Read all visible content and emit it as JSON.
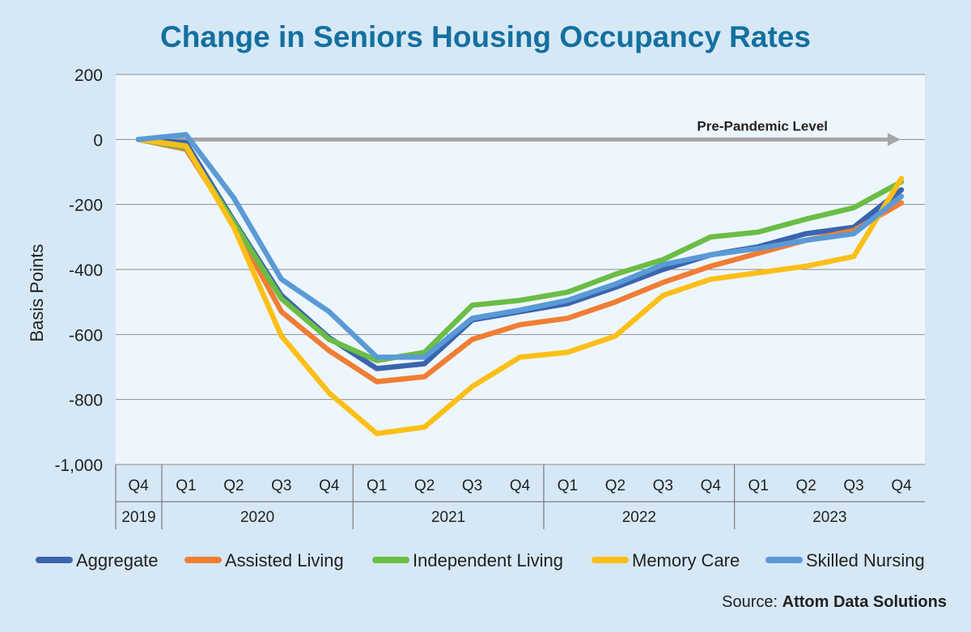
{
  "chart_data": {
    "type": "line",
    "title": "Change in Seniors Housing Occupancy Rates",
    "ylabel": "Basis Points",
    "ylim": [
      -1000,
      200
    ],
    "yticks": [
      200,
      0,
      -200,
      -400,
      -600,
      -800,
      -1000
    ],
    "ytick_labels": [
      "200",
      "0",
      "-200",
      "-400",
      "-600",
      "-800",
      "-1,000"
    ],
    "grid": true,
    "categories": [
      "Q4",
      "Q1",
      "Q2",
      "Q3",
      "Q4",
      "Q1",
      "Q2",
      "Q3",
      "Q4",
      "Q1",
      "Q2",
      "Q3",
      "Q4",
      "Q1",
      "Q2",
      "Q3",
      "Q4"
    ],
    "year_groups": [
      {
        "label": "2019",
        "start": 0,
        "end": 0
      },
      {
        "label": "2020",
        "start": 1,
        "end": 4
      },
      {
        "label": "2021",
        "start": 5,
        "end": 8
      },
      {
        "label": "2022",
        "start": 9,
        "end": 12
      },
      {
        "label": "2023",
        "start": 13,
        "end": 16
      }
    ],
    "reference_line": {
      "y": 0,
      "label": "Pre-Pandemic Level"
    },
    "legend_position": "bottom",
    "series": [
      {
        "name": "Aggregate",
        "color": "#3a64ad",
        "values": [
          0,
          -10,
          -250,
          -480,
          -610,
          -705,
          -690,
          -555,
          -530,
          -505,
          -455,
          -400,
          -355,
          -330,
          -290,
          -270,
          -155
        ]
      },
      {
        "name": "Assisted Living",
        "color": "#f07d34",
        "values": [
          0,
          -30,
          -260,
          -530,
          -650,
          -745,
          -730,
          -615,
          -570,
          -550,
          -500,
          -440,
          -390,
          -350,
          -310,
          -280,
          -195
        ]
      },
      {
        "name": "Independent Living",
        "color": "#6abd45",
        "values": [
          0,
          -25,
          -255,
          -490,
          -615,
          -680,
          -655,
          -510,
          -495,
          -470,
          -415,
          -370,
          -300,
          -285,
          -245,
          -210,
          -130
        ]
      },
      {
        "name": "Memory Care",
        "color": "#fbbf18",
        "values": [
          0,
          -20,
          -270,
          -605,
          -780,
          -905,
          -885,
          -760,
          -670,
          -655,
          -605,
          -480,
          -430,
          -410,
          -390,
          -360,
          -120
        ]
      },
      {
        "name": "Skilled Nursing",
        "color": "#5a9ad6",
        "values": [
          0,
          15,
          -180,
          -430,
          -530,
          -670,
          -670,
          -550,
          -525,
          -495,
          -445,
          -385,
          -355,
          -335,
          -310,
          -290,
          -175
        ]
      }
    ],
    "source_prefix": "Source: ",
    "source_name": "Attom Data Solutions"
  }
}
